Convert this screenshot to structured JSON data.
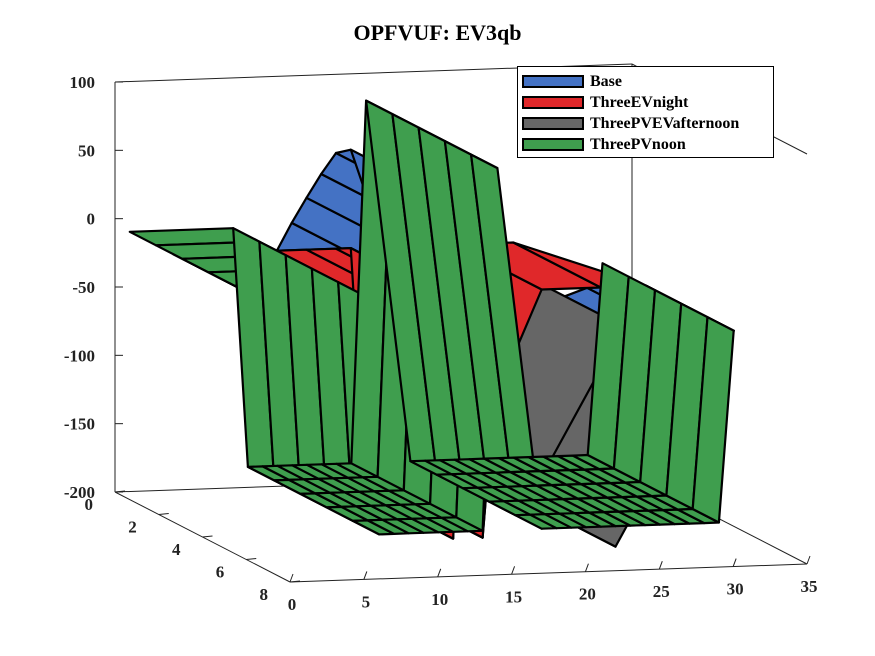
{
  "chart_data": {
    "type": "surface3d",
    "title": "OPFVUF: EV3qb",
    "xlabel": "",
    "ylabel": "",
    "zlabel": "",
    "xlim": [
      0,
      35
    ],
    "ylim": [
      0,
      8
    ],
    "zlim": [
      -200,
      100
    ],
    "x_ticks": [
      "0",
      "5",
      "10",
      "15",
      "20",
      "25",
      "30",
      "35"
    ],
    "y_ticks": [
      "0",
      "2",
      "4",
      "6",
      "8"
    ],
    "z_ticks": [
      "100",
      "50",
      "0",
      "-50",
      "-100",
      "-150",
      "-200"
    ],
    "grid": "off",
    "legend_position": "top-right",
    "series": [
      {
        "name": "Base",
        "color": "#4472c4",
        "x": [
          1,
          6,
          8,
          9,
          10,
          11,
          12,
          13,
          14,
          15,
          16,
          17,
          18,
          19,
          20,
          24,
          25,
          29,
          33
        ],
        "values": [
          -10,
          -10,
          -10,
          10,
          28,
          45,
          60,
          62,
          30,
          10,
          0,
          -40,
          5,
          -50,
          -45,
          -40,
          -60,
          -45,
          -45
        ]
      },
      {
        "name": "ThreeEVnight",
        "color": "#e0282a",
        "x": [
          1,
          10,
          12,
          13,
          14,
          15,
          16,
          17,
          18,
          20,
          24,
          33
        ],
        "values": [
          -10,
          -10,
          -10,
          -10,
          -190,
          -10,
          -190,
          -60,
          -60,
          -10,
          -10,
          -45
        ]
      },
      {
        "name": "ThreePVEVafternoon",
        "color": "#666666",
        "x": [
          1,
          10,
          11,
          12,
          13,
          14,
          15,
          16,
          17,
          18,
          20,
          22,
          24,
          25,
          33
        ],
        "values": [
          -10,
          -10,
          -10,
          -10,
          -10,
          -190,
          -10,
          -190,
          -60,
          -70,
          -80,
          -100,
          -30,
          -200,
          -45
        ]
      },
      {
        "name": "ThreePVnoon",
        "color": "#3f9e4e",
        "x": [
          1,
          8,
          9,
          10,
          11,
          12,
          13,
          14,
          15,
          16,
          17,
          20,
          21,
          22,
          23,
          24,
          25,
          26,
          27,
          28,
          29,
          30,
          31,
          32,
          33
        ],
        "values": [
          -10,
          -10,
          -185,
          -185,
          -185,
          -185,
          -185,
          -185,
          -185,
          -185,
          80,
          -185,
          -185,
          -185,
          -185,
          -185,
          -185,
          -185,
          -185,
          -185,
          -185,
          -185,
          -185,
          -185,
          -45
        ]
      }
    ]
  }
}
